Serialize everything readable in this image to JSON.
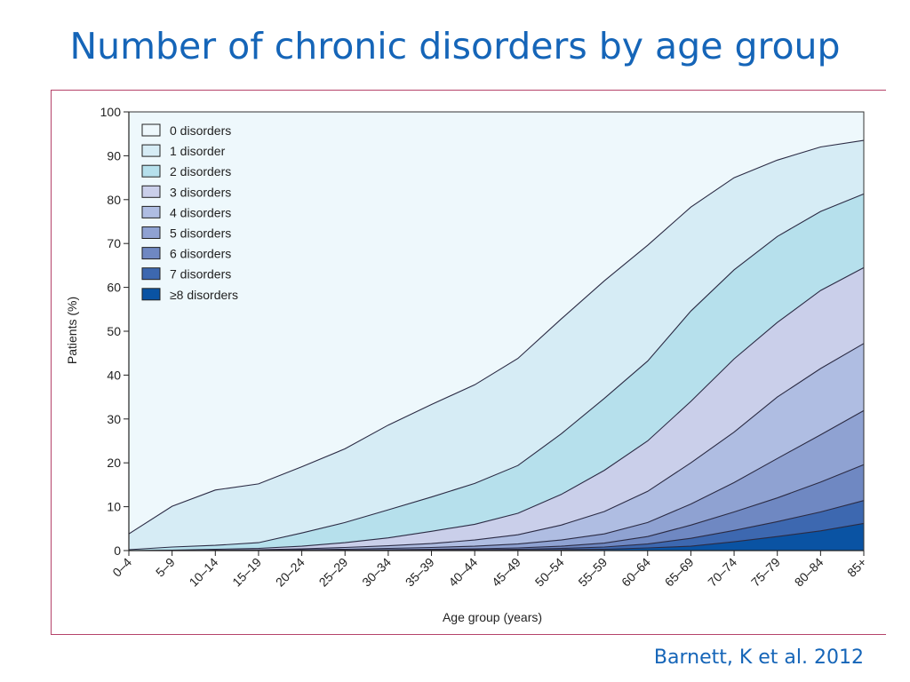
{
  "slide": {
    "title": "Number of chronic disorders by age group",
    "citation": "Barnett, K et al. 2012"
  },
  "chart_data": {
    "type": "area",
    "stacked": true,
    "xlabel": "Age group (years)",
    "ylabel": "Patients (%)",
    "ylim": [
      0,
      100
    ],
    "yticks": [
      0,
      10,
      20,
      30,
      40,
      50,
      60,
      70,
      80,
      90,
      100
    ],
    "legend_position": "top-left",
    "categories": [
      "0–4",
      "5–9",
      "10–14",
      "15–19",
      "20–24",
      "25–29",
      "30–34",
      "35–39",
      "40–44",
      "45–49",
      "50–54",
      "55–59",
      "60–64",
      "65–69",
      "70–74",
      "75–79",
      "80–84",
      "85+"
    ],
    "boundaries": [
      {
        "name": "≥8 disorders",
        "color": "#0a53a3",
        "values": [
          0,
          0,
          0,
          0,
          0,
          0,
          0,
          0,
          0.1,
          0.1,
          0.2,
          0.3,
          0.6,
          1.0,
          2.0,
          3.2,
          4.5,
          6.2
        ]
      },
      {
        "name": "7 disorders",
        "color": "#3d68b0",
        "values": [
          0,
          0,
          0,
          0,
          0,
          0,
          0.1,
          0.2,
          0.2,
          0.3,
          0.5,
          0.8,
          1.5,
          2.8,
          4.6,
          6.6,
          8.8,
          11.4
        ]
      },
      {
        "name": "6 disorders",
        "color": "#6f88c2",
        "values": [
          0,
          0,
          0,
          0,
          0,
          0.1,
          0.2,
          0.3,
          0.4,
          0.6,
          1.0,
          1.7,
          3.2,
          5.8,
          8.8,
          12.0,
          15.6,
          19.6
        ]
      },
      {
        "name": "5 disorders",
        "color": "#8fa2d2",
        "values": [
          0,
          0,
          0,
          0.1,
          0.2,
          0.3,
          0.5,
          0.7,
          1.0,
          1.5,
          2.4,
          3.8,
          6.4,
          10.6,
          15.5,
          21.0,
          26.4,
          31.9
        ]
      },
      {
        "name": "4 disorders",
        "color": "#afbde2",
        "values": [
          0,
          0,
          0.1,
          0.2,
          0.4,
          0.7,
          1.1,
          1.6,
          2.4,
          3.6,
          5.8,
          8.9,
          13.5,
          20.0,
          27.0,
          35.0,
          41.5,
          47.2
        ]
      },
      {
        "name": "3 disorders",
        "color": "#cacfea",
        "values": [
          0,
          0.1,
          0.3,
          0.5,
          1.0,
          1.8,
          2.9,
          4.4,
          6.0,
          8.5,
          12.8,
          18.3,
          25.0,
          34.0,
          43.7,
          52.0,
          59.3,
          64.5
        ]
      },
      {
        "name": "2 disorders",
        "color": "#b6e0ec",
        "values": [
          0.2,
          0.8,
          1.2,
          1.8,
          4.0,
          6.4,
          9.3,
          12.2,
          15.3,
          19.4,
          26.6,
          34.7,
          43.2,
          54.6,
          64.0,
          71.6,
          77.3,
          81.3
        ]
      },
      {
        "name": "1 disorder",
        "color": "#d6ecf5",
        "values": [
          3.8,
          10.1,
          13.8,
          15.2,
          19.1,
          23.2,
          28.6,
          33.3,
          37.8,
          43.8,
          52.8,
          61.5,
          69.6,
          78.3,
          85.0,
          89.0,
          92.0,
          93.5
        ]
      },
      {
        "name": "0 disorders",
        "color": "#eef8fc",
        "values": [
          100,
          100,
          100,
          100,
          100,
          100,
          100,
          100,
          100,
          100,
          100,
          100,
          100,
          100,
          100,
          100,
          100,
          100
        ]
      }
    ],
    "legend": [
      "0 disorders",
      "1 disorder",
      "2 disorders",
      "3 disorders",
      "4 disorders",
      "5 disorders",
      "6 disorders",
      "7 disorders",
      "≥8 disorders"
    ]
  }
}
